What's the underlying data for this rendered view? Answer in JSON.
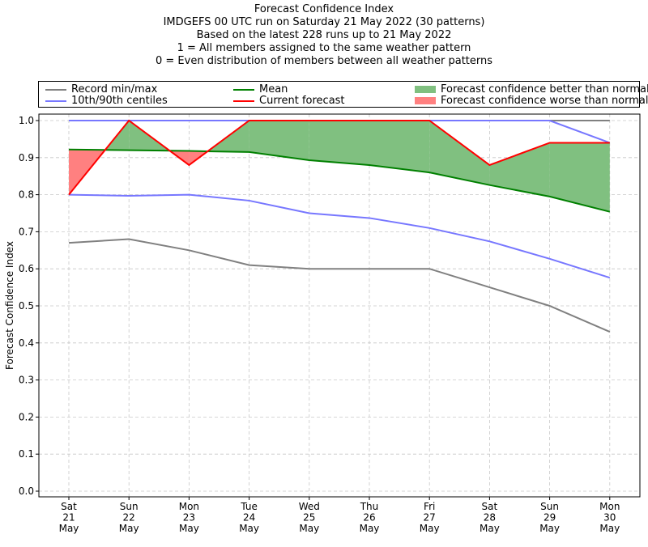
{
  "chart_data": {
    "type": "line",
    "title": "Forecast Confidence Index",
    "subtitle_lines": [
      "IMDGEFS 00 UTC run on Saturday 21 May 2022 (30 patterns)",
      "Based on the latest 228 runs up to 21 May 2022",
      "1 = All members assigned to the same weather pattern",
      "0 = Even distribution of members between all weather patterns"
    ],
    "ylabel": "Forecast Confidence Index",
    "xlabel": "",
    "ylim": [
      0.0,
      1.0
    ],
    "yticks": [
      "0.0",
      "0.1",
      "0.2",
      "0.3",
      "0.4",
      "0.5",
      "0.6",
      "0.7",
      "0.8",
      "0.9",
      "1.0"
    ],
    "grid": true,
    "categories": [
      {
        "day": "Sat",
        "date": "21",
        "month": "May"
      },
      {
        "day": "Sun",
        "date": "22",
        "month": "May"
      },
      {
        "day": "Mon",
        "date": "23",
        "month": "May"
      },
      {
        "day": "Tue",
        "date": "24",
        "month": "May"
      },
      {
        "day": "Wed",
        "date": "25",
        "month": "May"
      },
      {
        "day": "Thu",
        "date": "26",
        "month": "May"
      },
      {
        "day": "Fri",
        "date": "27",
        "month": "May"
      },
      {
        "day": "Sat",
        "date": "28",
        "month": "May"
      },
      {
        "day": "Sun",
        "date": "29",
        "month": "May"
      },
      {
        "day": "Mon",
        "date": "30",
        "month": "May"
      }
    ],
    "series": [
      {
        "key": "record_max",
        "name": "Record min/max",
        "color": "#808080",
        "values": [
          1.0,
          1.0,
          1.0,
          1.0,
          1.0,
          1.0,
          1.0,
          1.0,
          1.0,
          1.0
        ]
      },
      {
        "key": "record_min",
        "name": "Record min/max",
        "color": "#808080",
        "values": [
          0.67,
          0.68,
          0.65,
          0.61,
          0.6,
          0.6,
          0.6,
          0.55,
          0.5,
          0.43
        ]
      },
      {
        "key": "p90",
        "name": "10th/90th centiles",
        "color": "#7777ff",
        "values": [
          1.0,
          1.0,
          1.0,
          1.0,
          1.0,
          1.0,
          1.0,
          1.0,
          1.0,
          0.94
        ]
      },
      {
        "key": "p10",
        "name": "10th/90th centiles",
        "color": "#7777ff",
        "values": [
          0.8,
          0.797,
          0.8,
          0.784,
          0.75,
          0.737,
          0.71,
          0.674,
          0.627,
          0.576
        ]
      },
      {
        "key": "mean",
        "name": "Mean",
        "color": "#008000",
        "values": [
          0.922,
          0.92,
          0.918,
          0.915,
          0.893,
          0.88,
          0.86,
          0.826,
          0.795,
          0.754
        ]
      },
      {
        "key": "current",
        "name": "Current forecast",
        "color": "#ff0000",
        "values": [
          0.8,
          1.0,
          0.88,
          1.0,
          1.0,
          1.0,
          1.0,
          0.88,
          0.94,
          0.94
        ]
      }
    ],
    "fills": {
      "better": {
        "label": "Forecast confidence better than normal",
        "color": "#80c080"
      },
      "worse": {
        "label": "Forecast confidence worse than normal",
        "color": "#ff8080"
      }
    },
    "legend": {
      "placement": "top",
      "items": [
        {
          "label": "Record min/max",
          "kind": "line",
          "color": "#808080"
        },
        {
          "label": "10th/90th centiles",
          "kind": "line",
          "color": "#7777ff"
        },
        {
          "label": "Mean",
          "kind": "line",
          "color": "#008000"
        },
        {
          "label": "Current forecast",
          "kind": "line",
          "color": "#ff0000"
        },
        {
          "label": "Forecast confidence better than normal",
          "kind": "patch",
          "color": "#80c080"
        },
        {
          "label": "Forecast confidence worse than normal",
          "kind": "patch",
          "color": "#ff8080"
        }
      ]
    }
  }
}
